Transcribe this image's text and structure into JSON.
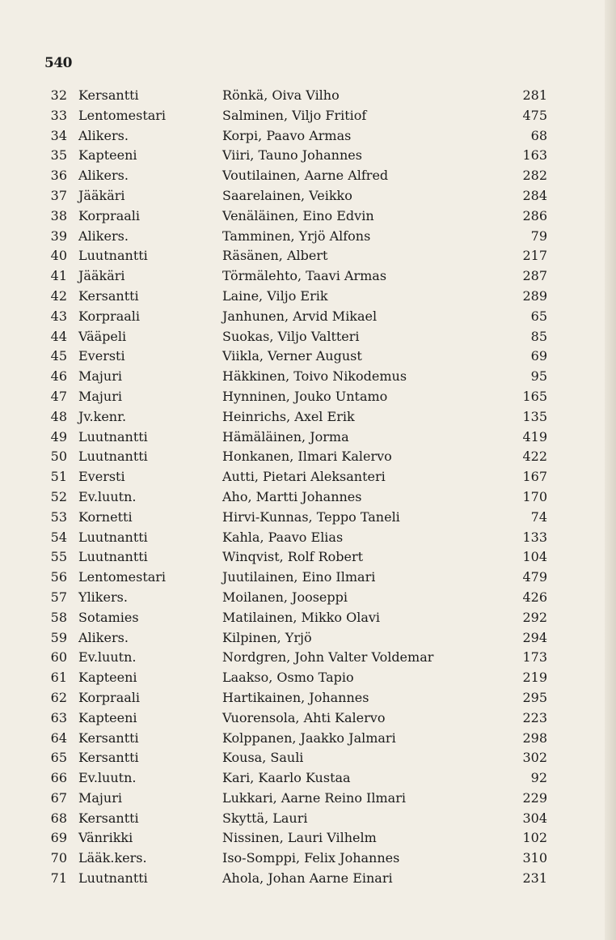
{
  "page_number": "540",
  "rows": [
    [
      "32",
      "Kersantti",
      "Rönkä, Oiva Vilho",
      "281"
    ],
    [
      "33",
      "Lentomestari",
      "Salminen, Viljo Fritiof",
      "475"
    ],
    [
      "34",
      "Alikers.",
      "Korpi, Paavo Armas",
      "68"
    ],
    [
      "35",
      "Kapteeni",
      "Viiri, Tauno Johannes",
      "163"
    ],
    [
      "36",
      "Alikers.",
      "Voutilainen, Aarne Alfred",
      "282"
    ],
    [
      "37",
      "Jääkäri",
      "Saarelainen, Veikko",
      "284"
    ],
    [
      "38",
      "Korpraali",
      "Venäläinen, Eino Edvin",
      "286"
    ],
    [
      "39",
      "Alikers.",
      "Tamminen, Yrjö Alfons",
      "79"
    ],
    [
      "40",
      "Luutnantti",
      "Räsänen, Albert",
      "217"
    ],
    [
      "41",
      "Jääkäri",
      "Törmälehto, Taavi Armas",
      "287"
    ],
    [
      "42",
      "Kersantti",
      "Laine, Viljo Erik",
      "289"
    ],
    [
      "43",
      "Korpraali",
      "Janhunen, Arvid Mikael",
      "65"
    ],
    [
      "44",
      "Vääpeli",
      "Suokas, Viljo Valtteri",
      "85"
    ],
    [
      "45",
      "Eversti",
      "Viikla, Verner August",
      "69"
    ],
    [
      "46",
      "Majuri",
      "Häkkinen, Toivo Nikodemus",
      "95"
    ],
    [
      "47",
      "Majuri",
      "Hynninen, Jouko Untamo",
      "165"
    ],
    [
      "48",
      "Jv.kenr.",
      "Heinrichs, Axel Erik",
      "135"
    ],
    [
      "49",
      "Luutnantti",
      "Hämäläinen, Jorma",
      "419"
    ],
    [
      "50",
      "Luutnantti",
      "Honkanen, Ilmari Kalervo",
      "422"
    ],
    [
      "51",
      "Eversti",
      "Autti, Pietari Aleksanteri",
      "167"
    ],
    [
      "52",
      "Ev.luutn.",
      "Aho, Martti Johannes",
      "170"
    ],
    [
      "53",
      "Kornetti",
      "Hirvi-Kunnas, Teppo Taneli",
      "74"
    ],
    [
      "54",
      "Luutnantti",
      "Kahla, Paavo Elias",
      "133"
    ],
    [
      "55",
      "Luutnantti",
      "Winqvist, Rolf Robert",
      "104"
    ],
    [
      "56",
      "Lentomestari",
      "Juutilainen, Eino Ilmari",
      "479"
    ],
    [
      "57",
      "Ylikers.",
      "Moilanen, Jooseppi",
      "426"
    ],
    [
      "58",
      "Sotamies",
      "Matilainen, Mikko Olavi",
      "292"
    ],
    [
      "59",
      "Alikers.",
      "Kilpinen, Yrjö",
      "294"
    ],
    [
      "60",
      "Ev.luutn.",
      "Nordgren, John Valter Voldemar",
      "173"
    ],
    [
      "61",
      "Kapteeni",
      "Laakso, Osmo Tapio",
      "219"
    ],
    [
      "62",
      "Korpraali",
      "Hartikainen, Johannes",
      "295"
    ],
    [
      "63",
      "Kapteeni",
      "Vuorensola, Ahti Kalervo",
      "223"
    ],
    [
      "64",
      "Kersantti",
      "Kolppanen, Jaakko Jalmari",
      "298"
    ],
    [
      "65",
      "Kersantti",
      "Kousa, Sauli",
      "302"
    ],
    [
      "66",
      "Ev.luutn.",
      "Kari, Kaarlo Kustaa",
      "92"
    ],
    [
      "67",
      "Majuri",
      "Lukkari, Aarne Reino Ilmari",
      "229"
    ],
    [
      "68",
      "Kersantti",
      "Skyttä, Lauri",
      "304"
    ],
    [
      "69",
      "Vänrikki",
      "Nissinen, Lauri Vilhelm",
      "102"
    ],
    [
      "70",
      "Lääk.kers.",
      "Iso-Somppi, Felix Johannes",
      "310"
    ],
    [
      "71",
      "Luutnantti",
      "Ahola, Johan Aarne Einari",
      "231"
    ]
  ]
}
